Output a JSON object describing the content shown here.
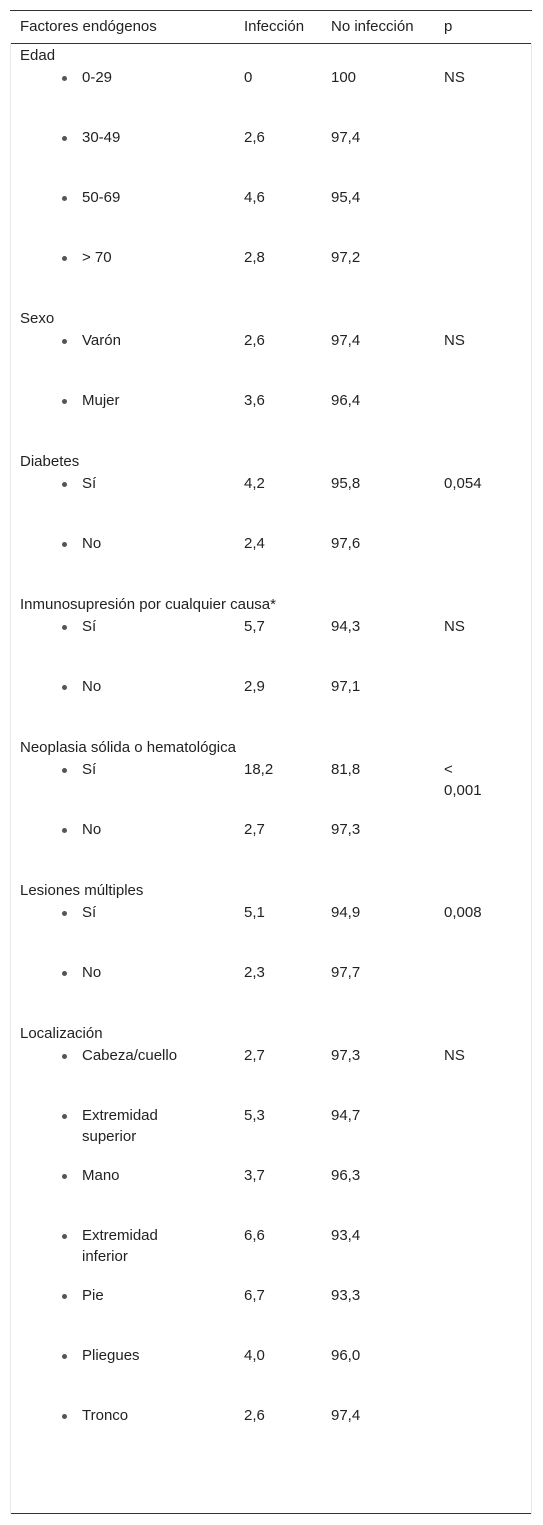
{
  "headers": {
    "factor": "Factores endógenos",
    "infection": "Infección",
    "no_infection": "No infección",
    "p": "p"
  },
  "groups": [
    {
      "title": "Edad",
      "rows": [
        {
          "label": "0-29",
          "infeccion": "0",
          "no_infeccion": "100",
          "p": "NS"
        },
        {
          "label": "30-49",
          "infeccion": "2,6",
          "no_infeccion": "97,4",
          "p": ""
        },
        {
          "label": "50-69",
          "infeccion": "4,6",
          "no_infeccion": "95,4",
          "p": ""
        },
        {
          "label": "> 70",
          "infeccion": "2,8",
          "no_infeccion": "97,2",
          "p": ""
        }
      ]
    },
    {
      "title": "Sexo",
      "rows": [
        {
          "label": "Varón",
          "infeccion": "2,6",
          "no_infeccion": "97,4",
          "p": "NS"
        },
        {
          "label": "Mujer",
          "infeccion": "3,6",
          "no_infeccion": "96,4",
          "p": ""
        }
      ]
    },
    {
      "title": "Diabetes",
      "rows": [
        {
          "label": "Sí",
          "infeccion": "4,2",
          "no_infeccion": "95,8",
          "p": "0,054"
        },
        {
          "label": "No",
          "infeccion": "2,4",
          "no_infeccion": "97,6",
          "p": ""
        }
      ]
    },
    {
      "title": "Inmunosupresión por cualquier causa*",
      "rows": [
        {
          "label": "Sí",
          "infeccion": "5,7",
          "no_infeccion": "94,3",
          "p": "NS"
        },
        {
          "label": "No",
          "infeccion": "2,9",
          "no_infeccion": "97,1",
          "p": ""
        }
      ]
    },
    {
      "title": "Neoplasia sólida o hematológica",
      "rows": [
        {
          "label": "Sí",
          "infeccion": "18,2",
          "no_infeccion": "81,8",
          "p": "< 0,001"
        },
        {
          "label": "No",
          "infeccion": "2,7",
          "no_infeccion": "97,3",
          "p": ""
        }
      ]
    },
    {
      "title": "Lesiones múltiples",
      "rows": [
        {
          "label": "Sí",
          "infeccion": "5,1",
          "no_infeccion": "94,9",
          "p": "0,008"
        },
        {
          "label": "No",
          "infeccion": "2,3",
          "no_infeccion": "97,7",
          "p": ""
        }
      ]
    },
    {
      "title": "Localización",
      "rows": [
        {
          "label": "Cabeza/cuello",
          "infeccion": "2,7",
          "no_infeccion": "97,3",
          "p": "NS"
        },
        {
          "label": "Extremidad superior",
          "infeccion": "5,3",
          "no_infeccion": "94,7",
          "p": ""
        },
        {
          "label": "Mano",
          "infeccion": "3,7",
          "no_infeccion": "96,3",
          "p": ""
        },
        {
          "label": "Extremidad inferior",
          "infeccion": "6,6",
          "no_infeccion": "93,4",
          "p": ""
        },
        {
          "label": "Pie",
          "infeccion": "6,7",
          "no_infeccion": "93,3",
          "p": ""
        },
        {
          "label": "Pliegues",
          "infeccion": "4,0",
          "no_infeccion": "96,0",
          "p": ""
        },
        {
          "label": "Tronco",
          "infeccion": "2,6",
          "no_infeccion": "97,4",
          "p": ""
        }
      ]
    }
  ]
}
